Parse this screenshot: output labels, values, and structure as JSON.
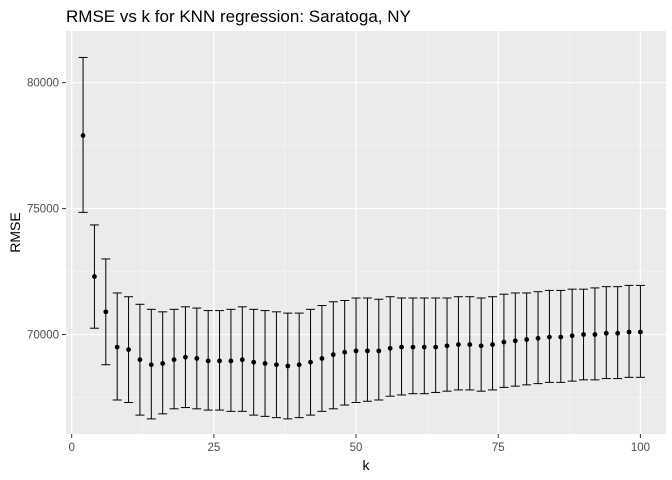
{
  "chart_data": {
    "type": "scatter",
    "title": "RMSE vs k for KNN regression: Saratoga, NY",
    "xlabel": "k",
    "ylabel": "RMSE",
    "xlim": [
      -1,
      104.5
    ],
    "ylim": [
      66050,
      82050
    ],
    "x_ticks": [
      0,
      25,
      50,
      75,
      100
    ],
    "x_tick_labels": [
      "0",
      "25",
      "50",
      "75",
      "100"
    ],
    "y_ticks": [
      70000,
      75000,
      80000
    ],
    "y_tick_labels": [
      "70000",
      "75000",
      "80000"
    ],
    "grid": true,
    "legend": "none",
    "colors": {
      "panel": "#ebebeb",
      "grid_major": "#ffffff",
      "grid_minor": "#f5f5f5",
      "point": "#000000",
      "errorbar": "#000000",
      "tick": "#333333"
    },
    "series": [
      {
        "x": [
          2,
          4,
          6,
          8,
          10,
          12,
          14,
          16,
          18,
          20,
          22,
          24,
          26,
          28,
          30,
          32,
          34,
          36,
          38,
          40,
          42,
          44,
          46,
          48,
          50,
          52,
          54,
          56,
          58,
          60,
          62,
          64,
          66,
          68,
          70,
          72,
          74,
          76,
          78,
          80,
          82,
          84,
          86,
          88,
          90,
          92,
          94,
          96,
          98,
          100
        ],
        "y": [
          77900,
          72300,
          70900,
          69500,
          69400,
          69000,
          68800,
          68850,
          69000,
          69100,
          69050,
          68950,
          68950,
          68950,
          69000,
          68900,
          68850,
          68800,
          68750,
          68800,
          68900,
          69050,
          69200,
          69300,
          69350,
          69350,
          69350,
          69450,
          69500,
          69500,
          69500,
          69500,
          69550,
          69600,
          69600,
          69550,
          69600,
          69700,
          69750,
          69800,
          69850,
          69900,
          69900,
          69950,
          70000,
          70000,
          70050,
          70050,
          70100,
          70100
        ],
        "ymin": [
          74850,
          70250,
          68800,
          67400,
          67300,
          66800,
          66650,
          66850,
          67050,
          67100,
          67050,
          67000,
          67000,
          66950,
          66950,
          66800,
          66750,
          66700,
          66650,
          66700,
          66800,
          66950,
          67050,
          67200,
          67300,
          67350,
          67400,
          67550,
          67600,
          67650,
          67650,
          67700,
          67750,
          67800,
          67800,
          67750,
          67800,
          67900,
          67950,
          68000,
          68050,
          68100,
          68100,
          68150,
          68200,
          68200,
          68250,
          68250,
          68300,
          68300
        ],
        "ymax": [
          81000,
          74350,
          73000,
          71650,
          71500,
          71200,
          71000,
          70900,
          71000,
          71100,
          71050,
          70950,
          70950,
          71000,
          71100,
          71000,
          70950,
          70900,
          70850,
          70850,
          71000,
          71150,
          71300,
          71350,
          71450,
          71450,
          71400,
          71500,
          71450,
          71450,
          71450,
          71450,
          71450,
          71500,
          71500,
          71450,
          71500,
          71600,
          71650,
          71650,
          71700,
          71750,
          71750,
          71800,
          71800,
          71850,
          71900,
          71900,
          71950,
          71950
        ]
      }
    ]
  }
}
